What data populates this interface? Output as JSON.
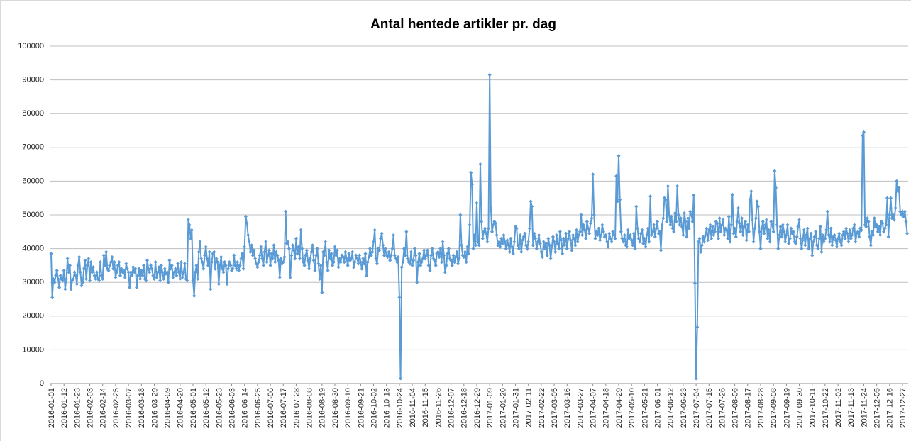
{
  "chart_data": {
    "type": "line",
    "title": "Antal hentede artikler pr. dag",
    "color": "#5b9bd5",
    "grid": true,
    "markers": "diamond",
    "ylim": [
      0,
      100000
    ],
    "yticks": [
      0,
      10000,
      20000,
      30000,
      40000,
      50000,
      60000,
      70000,
      80000,
      90000,
      100000
    ],
    "categories": [
      "2016-01-01",
      null,
      null,
      null,
      null,
      null,
      null,
      null,
      null,
      null,
      null,
      "2016-01-12",
      null,
      null,
      null,
      null,
      null,
      null,
      null,
      null,
      null,
      null,
      "2016-01-23",
      null,
      null,
      null,
      null,
      null,
      null,
      null,
      null,
      null,
      null,
      "2016-02-03",
      null,
      null,
      null,
      null,
      null,
      null,
      null,
      null,
      null,
      null,
      "2016-02-14",
      null,
      null,
      null,
      null,
      null,
      null,
      null,
      null,
      null,
      null,
      "2016-02-25",
      null,
      null,
      null,
      null,
      null,
      null,
      null,
      null,
      null,
      null,
      "2016-03-07",
      null,
      null,
      null,
      null,
      null,
      null,
      null,
      null,
      null,
      null,
      "2016-03-18",
      null,
      null,
      null,
      null,
      null,
      null,
      null,
      null,
      null,
      null,
      "2016-03-29",
      null,
      null,
      null,
      null,
      null,
      null,
      null,
      null,
      null,
      null,
      "2016-04-09",
      null,
      null,
      null,
      null,
      null,
      null,
      null,
      null,
      null,
      null,
      "2016-04-20",
      null,
      null,
      null,
      null,
      null,
      null,
      null,
      null,
      null,
      null,
      "2016-05-01",
      null,
      null,
      null,
      null,
      null,
      null,
      null,
      null,
      null,
      null,
      "2016-05-12",
      null,
      null,
      null,
      null,
      null,
      null,
      null,
      null,
      null,
      null,
      "2016-05-23",
      null,
      null,
      null,
      null,
      null,
      null,
      null,
      null,
      null,
      null,
      "2016-06-03",
      null,
      null,
      null,
      null,
      null,
      null,
      null,
      null,
      null,
      null,
      "2016-06-14",
      null,
      null,
      null,
      null,
      null,
      null,
      null,
      null,
      null,
      null,
      "2016-06-25",
      null,
      null,
      null,
      null,
      null,
      null,
      null,
      null,
      null,
      null,
      "2016-07-06",
      null,
      null,
      null,
      null,
      null,
      null,
      null,
      null,
      null,
      null,
      "2016-07-17",
      null,
      null,
      null,
      null,
      null,
      null,
      null,
      null,
      null,
      null,
      "2016-07-28",
      null,
      null,
      null,
      null,
      null,
      null,
      null,
      null,
      null,
      null,
      "2016-08-08",
      null,
      null,
      null,
      null,
      null,
      null,
      null,
      null,
      null,
      null,
      "2016-08-19",
      null,
      null,
      null,
      null,
      null,
      null,
      null,
      null,
      null,
      null,
      "2016-08-30",
      null,
      null,
      null,
      null,
      null,
      null,
      null,
      null,
      null,
      null,
      "2016-09-10",
      null,
      null,
      null,
      null,
      null,
      null,
      null,
      null,
      null,
      null,
      "2016-09-21",
      null,
      null,
      null,
      null,
      null,
      null,
      null,
      null,
      null,
      null,
      "2016-10-02",
      null,
      null,
      null,
      null,
      null,
      null,
      null,
      null,
      null,
      null,
      "2016-10-13",
      null,
      null,
      null,
      null,
      null,
      null,
      null,
      null,
      null,
      null,
      "2016-10-24",
      null,
      null,
      null,
      null,
      null,
      null,
      null,
      null,
      null,
      null,
      "2016-11-04",
      null,
      null,
      null,
      null,
      null,
      null,
      null,
      null,
      null,
      null,
      "2016-11-15",
      null,
      null,
      null,
      null,
      null,
      null,
      null,
      null,
      null,
      null,
      "2016-11-26",
      null,
      null,
      null,
      null,
      null,
      null,
      null,
      null,
      null,
      null,
      "2016-12-07",
      null,
      null,
      null,
      null,
      null,
      null,
      null,
      null,
      null,
      null,
      "2016-12-18",
      null,
      null,
      null,
      null,
      null,
      null,
      null,
      null,
      null,
      null,
      "2016-12-29",
      null,
      null,
      null,
      null,
      null,
      null,
      null,
      null,
      null,
      null,
      "2017-01-09",
      null,
      null,
      null,
      null,
      null,
      null,
      null,
      null,
      null,
      null,
      "2017-01-20",
      null,
      null,
      null,
      null,
      null,
      null,
      null,
      null,
      null,
      null,
      "2017-01-31",
      null,
      null,
      null,
      null,
      null,
      null,
      null,
      null,
      null,
      null,
      "2017-02-11",
      null,
      null,
      null,
      null,
      null,
      null,
      null,
      null,
      null,
      null,
      "2017-02-22",
      null,
      null,
      null,
      null,
      null,
      null,
      null,
      null,
      null,
      null,
      "2017-03-05",
      null,
      null,
      null,
      null,
      null,
      null,
      null,
      null,
      null,
      null,
      "2017-03-16",
      null,
      null,
      null,
      null,
      null,
      null,
      null,
      null,
      null,
      null,
      "2017-03-27",
      null,
      null,
      null,
      null,
      null,
      null,
      null,
      null,
      null,
      null,
      "2017-04-07",
      null,
      null,
      null,
      null,
      null,
      null,
      null,
      null,
      null,
      null,
      "2017-04-18",
      null,
      null,
      null,
      null,
      null,
      null,
      null,
      null,
      null,
      null,
      "2017-04-29",
      null,
      null,
      null,
      null,
      null,
      null,
      null,
      null,
      null,
      null,
      "2017-05-10",
      null,
      null,
      null,
      null,
      null,
      null,
      null,
      null,
      null,
      null,
      "2017-05-21",
      null,
      null,
      null,
      null,
      null,
      null,
      null,
      null,
      null,
      null,
      "2017-06-01",
      null,
      null,
      null,
      null,
      null,
      null,
      null,
      null,
      null,
      null,
      "2017-06-12",
      null,
      null,
      null,
      null,
      null,
      null,
      null,
      null,
      null,
      null,
      "2017-06-23",
      null,
      null,
      null,
      null,
      null,
      null,
      null,
      null,
      null,
      null,
      "2017-07-04",
      null,
      null,
      null,
      null,
      null,
      null,
      null,
      null,
      null,
      null,
      "2017-07-15",
      null,
      null,
      null,
      null,
      null,
      null,
      null,
      null,
      null,
      null,
      "2017-07-26",
      null,
      null,
      null,
      null,
      null,
      null,
      null,
      null,
      null,
      null,
      "2017-08-06",
      null,
      null,
      null,
      null,
      null,
      null,
      null,
      null,
      null,
      null,
      "2017-08-17",
      null,
      null,
      null,
      null,
      null,
      null,
      null,
      null,
      null,
      null,
      "2017-08-28",
      null,
      null,
      null,
      null,
      null,
      null,
      null,
      null,
      null,
      null,
      "2017-09-08",
      null,
      null,
      null,
      null,
      null,
      null,
      null,
      null,
      null,
      null,
      "2017-09-19",
      null,
      null,
      null,
      null,
      null,
      null,
      null,
      null,
      null,
      null,
      "2017-09-30",
      null,
      null,
      null,
      null,
      null,
      null,
      null,
      null,
      null,
      null,
      "2017-10-11",
      null,
      null,
      null,
      null,
      null,
      null,
      null,
      null,
      null,
      null,
      "2017-10-22",
      null,
      null,
      null,
      null,
      null,
      null,
      null,
      null,
      null,
      null,
      "2017-11-02",
      null,
      null,
      null,
      null,
      null,
      null,
      null,
      null,
      null,
      null,
      "2017-11-13",
      null,
      null,
      null,
      null,
      null,
      null,
      null,
      null,
      null,
      null,
      "2017-11-24",
      null,
      null,
      null,
      null,
      null,
      null,
      null,
      null,
      null,
      null,
      "2017-12-05",
      null,
      null,
      null,
      null,
      null,
      null,
      null,
      null,
      null,
      null,
      "2017-12-16",
      null,
      null,
      null,
      null,
      null,
      null,
      null,
      null,
      null,
      null,
      "2017-12-27",
      null,
      null,
      null,
      null
    ],
    "values": [
      38500,
      25500,
      31000,
      30000,
      32000,
      33500,
      31000,
      28500,
      32000,
      31000,
      30500,
      33500,
      28000,
      31000,
      37000,
      33000,
      35000,
      28000,
      30500,
      31000,
      33000,
      32000,
      29500,
      35000,
      37500,
      33000,
      29000,
      30000,
      34000,
      36500,
      31000,
      35000,
      37000,
      30500,
      36000,
      33000,
      34500,
      32000,
      31000,
      33000,
      31000,
      30500,
      36000,
      32000,
      31000,
      38000,
      35000,
      39000,
      34000,
      33500,
      35000,
      36000,
      37500,
      34000,
      36000,
      31500,
      33000,
      35000,
      36000,
      32000,
      34000,
      33000,
      33500,
      31500,
      35500,
      34000,
      33000,
      28500,
      33000,
      32000,
      34500,
      33000,
      34000,
      28500,
      32000,
      34000,
      31000,
      33500,
      32000,
      35000,
      31000,
      30500,
      36500,
      34000,
      33000,
      35000,
      34000,
      32000,
      31000,
      36000,
      31500,
      33000,
      34500,
      30500,
      35000,
      33000,
      31000,
      34000,
      32500,
      33000,
      30000,
      36500,
      34000,
      35000,
      31500,
      33000,
      34000,
      32000,
      35500,
      33000,
      31000,
      36000,
      31500,
      33000,
      35500,
      31000,
      30500,
      48500,
      47000,
      43000,
      45500,
      30500,
      26000,
      33000,
      35000,
      31000,
      39000,
      42000,
      37000,
      36000,
      34000,
      38000,
      40500,
      37000,
      35000,
      39000,
      28000,
      36000,
      38500,
      39000,
      34000,
      37000,
      36000,
      29500,
      35000,
      37500,
      34000,
      33000,
      36000,
      35000,
      29500,
      34000,
      36000,
      35000,
      33500,
      34000,
      38000,
      35000,
      34000,
      36000,
      33500,
      35000,
      37000,
      38500,
      34000,
      40500,
      49500,
      47500,
      44000,
      42000,
      39000,
      41000,
      38000,
      39500,
      37000,
      35500,
      34500,
      36000,
      38000,
      40500,
      37000,
      35000,
      39000,
      42000,
      36000,
      38000,
      39500,
      35000,
      38500,
      37000,
      41000,
      36000,
      39000,
      38000,
      36500,
      31500,
      37000,
      35500,
      36000,
      37500,
      51000,
      41500,
      42000,
      40000,
      31500,
      38000,
      41000,
      39500,
      37000,
      43000,
      38500,
      40500,
      37000,
      45500,
      40000,
      36000,
      35000,
      38000,
      39500,
      36500,
      34000,
      37000,
      39000,
      41000,
      36500,
      33500,
      38000,
      40000,
      35500,
      31000,
      35000,
      27000,
      39000,
      38000,
      42000,
      36000,
      33500,
      39500,
      37000,
      38500,
      35000,
      36000,
      40500,
      38000,
      39500,
      34500,
      37000,
      36000,
      38000,
      37500,
      36000,
      39000,
      37000,
      35000,
      38500,
      36500,
      37000,
      39000,
      34500,
      36000,
      38000,
      37000,
      35500,
      38000,
      36000,
      34000,
      37000,
      35500,
      38500,
      32000,
      36000,
      37500,
      40000,
      38000,
      39000,
      42000,
      45500,
      37000,
      35500,
      40000,
      39500,
      43000,
      44500,
      41000,
      38000,
      40000,
      38000,
      37500,
      39000,
      36500,
      38000,
      40000,
      44000,
      38000,
      37000,
      36000,
      37500,
      25500,
      1500,
      34500,
      36000,
      40000,
      38000,
      45000,
      37000,
      36000,
      35500,
      39000,
      35000,
      36500,
      40000,
      38000,
      30000,
      36000,
      38500,
      35000,
      36000,
      37000,
      39500,
      37000,
      38000,
      39500,
      35000,
      33500,
      38000,
      40000,
      37000,
      36500,
      35000,
      38500,
      39000,
      37500,
      40000,
      36000,
      42000,
      38000,
      33000,
      35000,
      38500,
      40000,
      37000,
      36500,
      35000,
      38000,
      36000,
      37500,
      39000,
      35500,
      37000,
      50000,
      41000,
      38000,
      37500,
      39000,
      36000,
      40500,
      38500,
      47000,
      62500,
      59000,
      40000,
      44000,
      41000,
      53500,
      42000,
      41000,
      65000,
      48000,
      43000,
      45000,
      46000,
      44500,
      42000,
      46000,
      91500,
      52000,
      45000,
      47000,
      48000,
      47500,
      44000,
      41000,
      42000,
      40500,
      43000,
      41500,
      44000,
      42000,
      40000,
      42500,
      41000,
      39000,
      43000,
      40500,
      38500,
      42000,
      46500,
      46000,
      41000,
      40000,
      44000,
      39000,
      42500,
      43500,
      44500,
      41000,
      40000,
      42000,
      46000,
      54000,
      52500,
      41000,
      44500,
      43000,
      40000,
      42000,
      44000,
      41500,
      39000,
      37500,
      42000,
      40000,
      41500,
      38000,
      43000,
      41000,
      37000,
      40500,
      43500,
      42000,
      39000,
      44000,
      41500,
      40000,
      45000,
      42500,
      38500,
      43000,
      41000,
      44500,
      40000,
      43000,
      45000,
      42500,
      39500,
      44000,
      43000,
      41000,
      45500,
      42000,
      44000,
      45000,
      50000,
      44000,
      47000,
      45500,
      43000,
      48000,
      46000,
      44500,
      47500,
      49000,
      62000,
      50000,
      43000,
      45000,
      44000,
      46000,
      42500,
      44000,
      47000,
      45000,
      43500,
      44000,
      42000,
      40500,
      44500,
      43000,
      42000,
      45000,
      44000,
      43000,
      61500,
      54000,
      67500,
      54500,
      45000,
      43000,
      42000,
      44000,
      41000,
      40500,
      45500,
      43000,
      44000,
      42500,
      41000,
      44500,
      40000,
      52500,
      46000,
      43000,
      42000,
      44500,
      45500,
      41500,
      43000,
      40500,
      44000,
      46000,
      42000,
      55500,
      44000,
      45000,
      47000,
      43500,
      46000,
      48000,
      44500,
      45000,
      39500,
      47000,
      49000,
      55000,
      54500,
      48000,
      58500,
      50000,
      47000,
      49500,
      46000,
      45000,
      50500,
      48000,
      58500,
      50000,
      47000,
      49000,
      46500,
      44000,
      50500,
      48000,
      43500,
      49000,
      46000,
      51000,
      50000,
      48000,
      55800,
      29700,
      1500,
      16700,
      42000,
      43000,
      39000,
      41000,
      43500,
      42000,
      44000,
      46000,
      42500,
      45500,
      47000,
      43000,
      46500,
      44000,
      45000,
      48000,
      47500,
      43000,
      49000,
      45000,
      47000,
      48500,
      44000,
      46000,
      45500,
      43000,
      49500,
      42000,
      47000,
      56000,
      44500,
      46000,
      43500,
      48000,
      52000,
      47500,
      45000,
      49000,
      44000,
      46500,
      48000,
      42500,
      47000,
      45000,
      54500,
      57000,
      48500,
      42000,
      46000,
      49000,
      54000,
      52500,
      45000,
      40000,
      46000,
      48000,
      44500,
      47000,
      48500,
      43000,
      45500,
      42000,
      48000,
      47000,
      45000,
      63000,
      58000,
      47000,
      40000,
      44000,
      46500,
      43500,
      47000,
      45000,
      42000,
      44000,
      47000,
      41500,
      43000,
      46000,
      44500,
      45000,
      42000,
      41500,
      43500,
      46500,
      48500,
      43000,
      40000,
      42500,
      45500,
      41000,
      44000,
      46000,
      40000,
      43000,
      44500,
      38000,
      42000,
      43500,
      45000,
      41000,
      40000,
      43000,
      46500,
      39000,
      44000,
      42000,
      43000,
      45500,
      51000,
      44000,
      42000,
      46000,
      41000,
      43500,
      44000,
      42500,
      40500,
      43000,
      44500,
      42000,
      41000,
      44000,
      45000,
      43000,
      46000,
      44500,
      42000,
      45500,
      43000,
      44000,
      46000,
      47000,
      42000,
      44500,
      45000,
      43500,
      46000,
      45500,
      73500,
      74500,
      47000,
      46500,
      49000,
      48000,
      43500,
      41000,
      45000,
      44000,
      49000,
      46500,
      47000,
      45000,
      46500,
      44000,
      48000,
      47500,
      45000,
      46000,
      47000,
      55000,
      43500,
      50000,
      55000,
      49000,
      50000,
      48500,
      52000,
      60000,
      57000,
      58000,
      51000,
      50000,
      51000,
      49500,
      51000,
      48000,
      44500
    ]
  }
}
